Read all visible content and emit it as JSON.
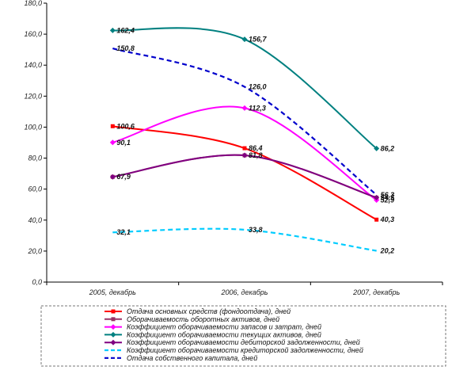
{
  "chart_data": {
    "type": "line",
    "categories": [
      "2005, декабрь",
      "2006, декабрь",
      "2007, декабрь"
    ],
    "ylim": [
      0,
      180
    ],
    "yticks": [
      0,
      20,
      40,
      60,
      80,
      100,
      120,
      140,
      160,
      180
    ],
    "ytick_labels": [
      "0,0",
      "20,0",
      "40,0",
      "60,0",
      "80,0",
      "100,0",
      "120,0",
      "140,0",
      "160,0",
      "180,0"
    ],
    "grid": false,
    "legend_placement": "bottom",
    "smooth": true,
    "series": [
      {
        "name": "Отдача основных средств (фондоотдача), дней",
        "values": [
          100.6,
          86.4,
          40.3
        ],
        "labels": [
          "100,6",
          "86,4",
          "40,3"
        ],
        "color": "#ff0000",
        "dash": "solid",
        "marker": "square"
      },
      {
        "name": "Оборачиваемость оборотных активов, дней",
        "values": [
          67.9,
          81.8,
          54.5
        ],
        "labels": [
          "67,9",
          "81,8",
          "54,5"
        ],
        "color": "#993366",
        "dash": "solid",
        "marker": "square"
      },
      {
        "name": "Коэффициент оборачиваемости запасов и затрат, дней",
        "values": [
          90.1,
          112.3,
          52.9
        ],
        "labels": [
          "90,1",
          "112,3",
          "52,9"
        ],
        "color": "#ff00ff",
        "dash": "solid",
        "marker": "diamond"
      },
      {
        "name": "Коэффициент оборачиваемости текущих активов, дней",
        "values": [
          162.4,
          156.7,
          86.2
        ],
        "labels": [
          "162,4",
          "156,7",
          "86,2"
        ],
        "color": "#008080",
        "dash": "solid",
        "marker": "diamond"
      },
      {
        "name": "Коэффициент оборачиваемости дебиторской задолженности, дней",
        "values": [
          67.9,
          81.8,
          54.5
        ],
        "labels": [
          "",
          "",
          ""
        ],
        "color": "#800080",
        "dash": "solid",
        "marker": "diamond"
      },
      {
        "name": "Коэффициент оборачиваемости кредиторской задолженности, дней",
        "values": [
          32.1,
          33.8,
          20.2
        ],
        "labels": [
          "32,1",
          "33,8",
          "20,2"
        ],
        "color": "#00ccff",
        "dash": "dashed",
        "marker": "none"
      },
      {
        "name": "Отдача собственного капитала, дней",
        "values": [
          150.8,
          126.0,
          56.3
        ],
        "labels": [
          "150,8",
          "126,0",
          "56,3"
        ],
        "color": "#0000cc",
        "dash": "dashed",
        "marker": "none"
      }
    ]
  }
}
